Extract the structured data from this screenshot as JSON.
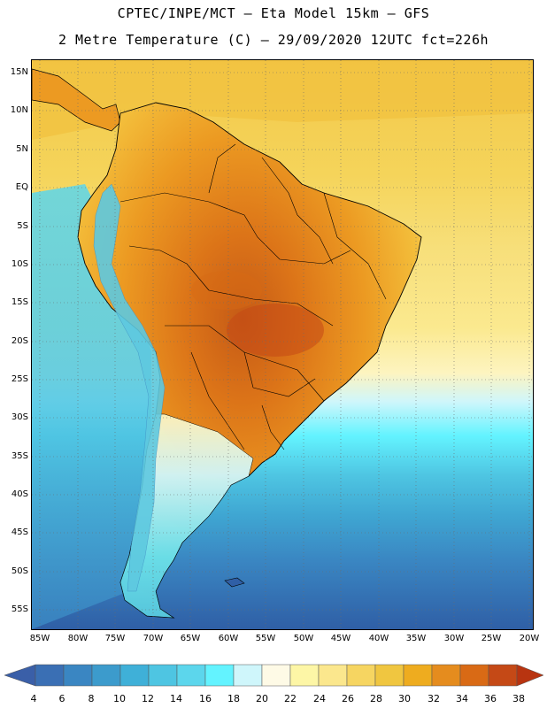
{
  "titles": {
    "line1": "CPTEC/INPE/MCT —  Eta Model 15km — GFS",
    "line2": "2 Metre Temperature (C) — 29/09/2020 12UTC fct=226h"
  },
  "lat_labels": [
    "15N",
    "10N",
    "5N",
    "EQ",
    "5S",
    "10S",
    "15S",
    "20S",
    "25S",
    "30S",
    "35S",
    "40S",
    "45S",
    "50S",
    "55S"
  ],
  "lon_labels": [
    "85W",
    "80W",
    "75W",
    "70W",
    "65W",
    "60W",
    "55W",
    "50W",
    "45W",
    "40W",
    "35W",
    "30W",
    "25W",
    "20W"
  ],
  "colorbar": {
    "labels": [
      "4",
      "6",
      "8",
      "10",
      "12",
      "14",
      "16",
      "18",
      "20",
      "22",
      "24",
      "26",
      "28",
      "30",
      "32",
      "34",
      "36",
      "38"
    ],
    "colors": [
      "#3a6fb4",
      "#3a86c2",
      "#3c9bcc",
      "#3fb0d8",
      "#4ec5e2",
      "#5cd6ec",
      "#63f3ff",
      "#cff6fb",
      "#fefae6",
      "#fdf6a6",
      "#fbe78d",
      "#f6d561",
      "#f0c640",
      "#eeac1f",
      "#e58c1e",
      "#d96a15",
      "#c54916"
    ],
    "low_arrow_color": "#3a5fa8",
    "high_arrow_color": "#b83410"
  },
  "palette": {
    "ocean_cold": "#2f5fa6",
    "ocean_mid": "#3f8fc8",
    "ocean_warm": "#58c9e6",
    "subtropical": "#fbe78d",
    "tropical_atlantic": "#f4d157",
    "land_hot": "#e98d21",
    "land_core": "#d66a15",
    "andes": "#5ec9e0"
  }
}
